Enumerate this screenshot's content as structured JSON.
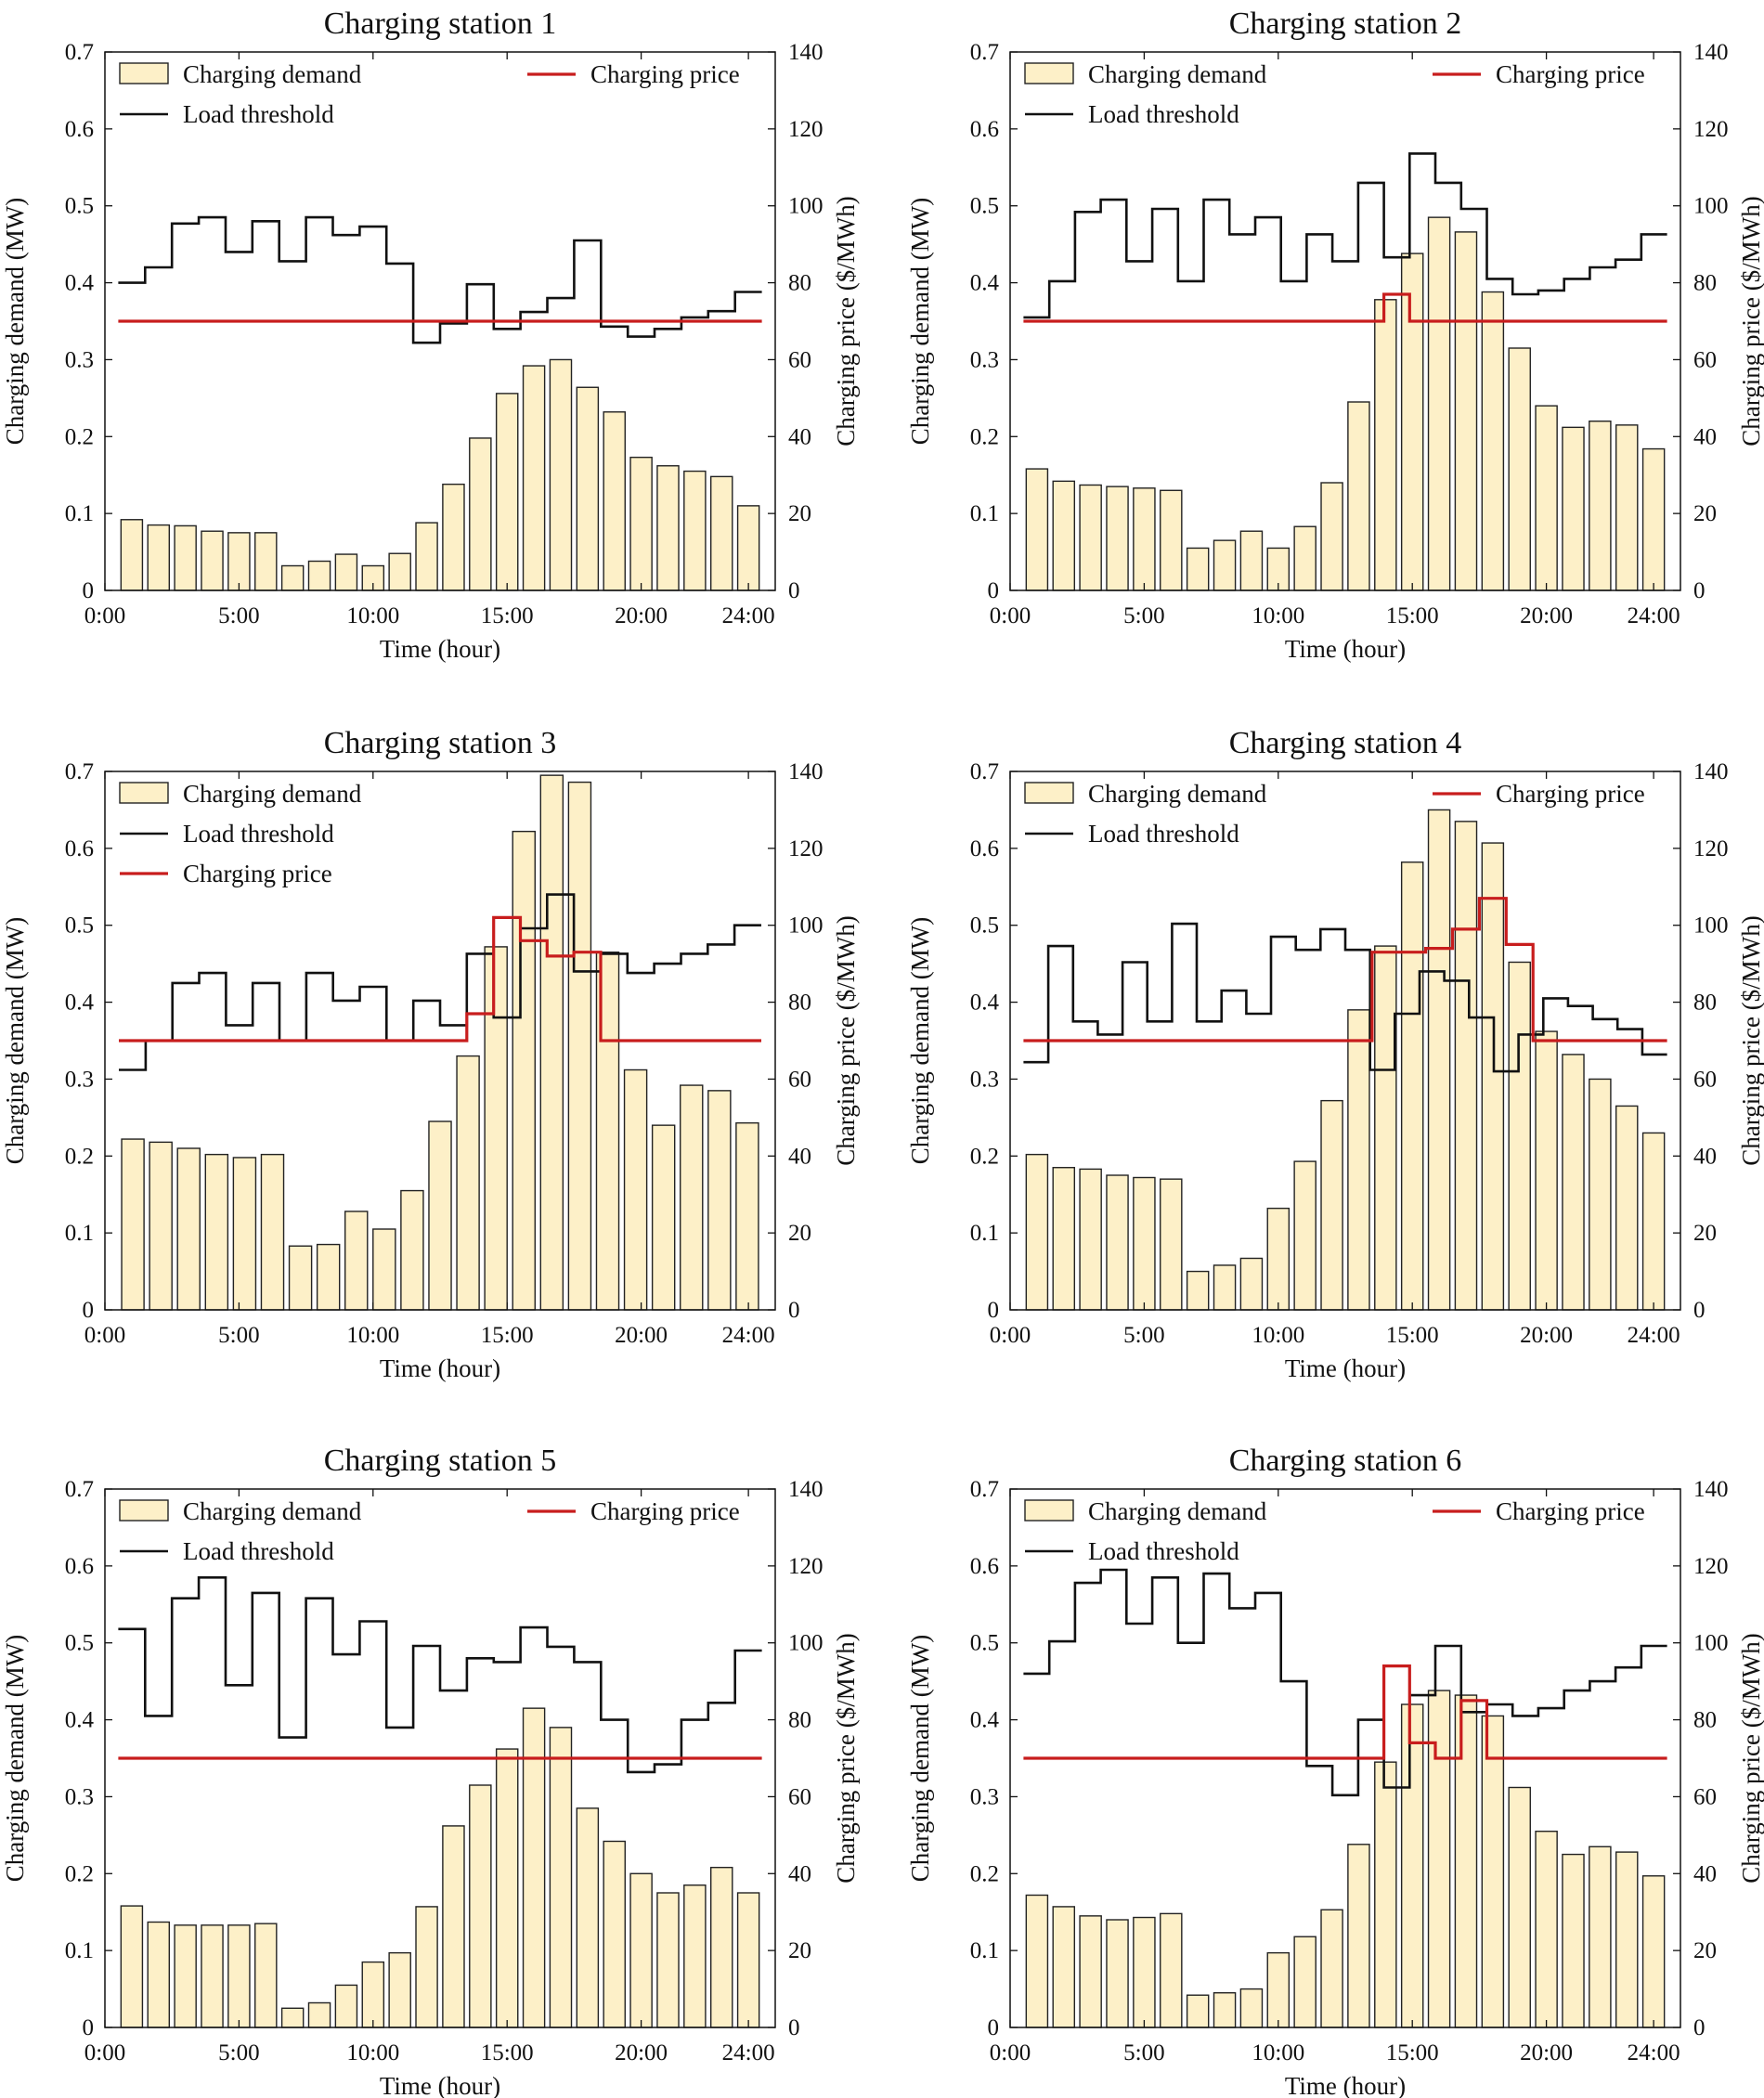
{
  "chart_data": [
    {
      "type": "bar",
      "title": "Charging station 1",
      "xlabel": "Time (hour)",
      "ylabel": "Charging demand (MW)",
      "y2label": "Charging price ($/MWh)",
      "xlim": [
        0,
        25
      ],
      "ylim": [
        0,
        0.7
      ],
      "y2lim": [
        0,
        140
      ],
      "xticks": [
        0,
        5,
        10,
        15,
        20,
        24
      ],
      "xtick_labels": [
        "0:00",
        "5:00",
        "10:00",
        "15:00",
        "20:00",
        "24:00"
      ],
      "yticks": [
        0,
        0.1,
        0.2,
        0.3,
        0.4,
        0.5,
        0.6,
        0.7
      ],
      "ytick_labels": [
        "0",
        "0.1",
        "0.2",
        "0.3",
        "0.4",
        "0.5",
        "0.6",
        "0.7"
      ],
      "y2ticks": [
        0,
        20,
        40,
        60,
        80,
        100,
        120,
        140
      ],
      "y2tick_labels": [
        "0",
        "20",
        "40",
        "60",
        "80",
        "100",
        "120",
        "140"
      ],
      "legend": [
        {
          "label": "Charging demand",
          "style": "bar",
          "col": 0,
          "row": 0
        },
        {
          "label": "Load threshold",
          "style": "line",
          "color": "#111111",
          "col": 0,
          "row": 1
        },
        {
          "label": "Charging price",
          "style": "line",
          "color": "#c81d1d",
          "col": 1,
          "row": 0
        }
      ],
      "series": [
        {
          "name": "Charging demand",
          "kind": "bar",
          "axis": "left",
          "values": [
            0.092,
            0.085,
            0.084,
            0.077,
            0.075,
            0.075,
            0.032,
            0.038,
            0.047,
            0.032,
            0.048,
            0.088,
            0.138,
            0.198,
            0.256,
            0.292,
            0.3,
            0.264,
            0.232,
            0.173,
            0.162,
            0.155,
            0.148,
            0.11
          ]
        },
        {
          "name": "Load threshold",
          "kind": "step",
          "axis": "left",
          "values": [
            0.4,
            0.42,
            0.477,
            0.485,
            0.44,
            0.48,
            0.428,
            0.485,
            0.462,
            0.473,
            0.425,
            0.322,
            0.347,
            0.398,
            0.34,
            0.362,
            0.38,
            0.455,
            0.343,
            0.33,
            0.34,
            0.355,
            0.363,
            0.388
          ]
        },
        {
          "name": "Charging price",
          "kind": "step",
          "axis": "right",
          "values": [
            70,
            70,
            70,
            70,
            70,
            70,
            70,
            70,
            70,
            70,
            70,
            70,
            70,
            70,
            70,
            70,
            70,
            70,
            70,
            70,
            70,
            70,
            70,
            70
          ]
        }
      ]
    },
    {
      "type": "bar",
      "title": "Charging station 2",
      "xlabel": "Time (hour)",
      "ylabel": "Charging demand (MW)",
      "y2label": "Charging price ($/MWh)",
      "xlim": [
        0,
        25
      ],
      "ylim": [
        0,
        0.7
      ],
      "y2lim": [
        0,
        140
      ],
      "xticks": [
        0,
        5,
        10,
        15,
        20,
        24
      ],
      "xtick_labels": [
        "0:00",
        "5:00",
        "10:00",
        "15:00",
        "20:00",
        "24:00"
      ],
      "yticks": [
        0,
        0.1,
        0.2,
        0.3,
        0.4,
        0.5,
        0.6,
        0.7
      ],
      "ytick_labels": [
        "0",
        "0.1",
        "0.2",
        "0.3",
        "0.4",
        "0.5",
        "0.6",
        "0.7"
      ],
      "y2ticks": [
        0,
        20,
        40,
        60,
        80,
        100,
        120,
        140
      ],
      "y2tick_labels": [
        "0",
        "20",
        "40",
        "60",
        "80",
        "100",
        "120",
        "140"
      ],
      "legend": [
        {
          "label": "Charging demand",
          "style": "bar",
          "col": 0,
          "row": 0
        },
        {
          "label": "Load threshold",
          "style": "line",
          "color": "#111111",
          "col": 0,
          "row": 1
        },
        {
          "label": "Charging price",
          "style": "line",
          "color": "#c81d1d",
          "col": 1,
          "row": 0
        }
      ],
      "series": [
        {
          "name": "Charging demand",
          "kind": "bar",
          "axis": "left",
          "values": [
            0.158,
            0.142,
            0.137,
            0.135,
            0.133,
            0.13,
            0.055,
            0.065,
            0.077,
            0.055,
            0.083,
            0.14,
            0.245,
            0.378,
            0.438,
            0.485,
            0.466,
            0.388,
            0.315,
            0.24,
            0.212,
            0.22,
            0.215,
            0.184
          ]
        },
        {
          "name": "Load threshold",
          "kind": "step",
          "axis": "left",
          "values": [
            0.355,
            0.402,
            0.492,
            0.508,
            0.428,
            0.496,
            0.402,
            0.508,
            0.463,
            0.485,
            0.402,
            0.463,
            0.428,
            0.53,
            0.433,
            0.568,
            0.53,
            0.496,
            0.405,
            0.385,
            0.39,
            0.405,
            0.42,
            0.43,
            0.463
          ]
        },
        {
          "name": "Charging price",
          "kind": "step",
          "axis": "right",
          "values": [
            70,
            70,
            70,
            70,
            70,
            70,
            70,
            70,
            70,
            70,
            70,
            70,
            70,
            70,
            77,
            70,
            70,
            70,
            70,
            70,
            70,
            70,
            70,
            70,
            70
          ]
        }
      ]
    },
    {
      "type": "bar",
      "title": "Charging station 3",
      "xlabel": "Time (hour)",
      "ylabel": "Charging demand (MW)",
      "y2label": "Charging price ($/MWh)",
      "xlim": [
        0,
        25
      ],
      "ylim": [
        0,
        0.7
      ],
      "y2lim": [
        0,
        140
      ],
      "xticks": [
        0,
        5,
        10,
        15,
        20,
        24
      ],
      "xtick_labels": [
        "0:00",
        "5:00",
        "10:00",
        "15:00",
        "20:00",
        "24:00"
      ],
      "yticks": [
        0,
        0.1,
        0.2,
        0.3,
        0.4,
        0.5,
        0.6,
        0.7
      ],
      "ytick_labels": [
        "0",
        "0.1",
        "0.2",
        "0.3",
        "0.4",
        "0.5",
        "0.6",
        "0.7"
      ],
      "y2ticks": [
        0,
        20,
        40,
        60,
        80,
        100,
        120,
        140
      ],
      "y2tick_labels": [
        "0",
        "20",
        "40",
        "60",
        "80",
        "100",
        "120",
        "140"
      ],
      "legend": [
        {
          "label": "Charging demand",
          "style": "bar",
          "col": 0,
          "row": 0
        },
        {
          "label": "Load threshold",
          "style": "line",
          "color": "#111111",
          "col": 0,
          "row": 1
        },
        {
          "label": "Charging price",
          "style": "line",
          "color": "#c81d1d",
          "col": 0,
          "row": 2
        }
      ],
      "series": [
        {
          "name": "Charging demand",
          "kind": "bar",
          "axis": "left",
          "values": [
            0.222,
            0.218,
            0.21,
            0.202,
            0.198,
            0.202,
            0.083,
            0.085,
            0.128,
            0.105,
            0.155,
            0.245,
            0.33,
            0.472,
            0.622,
            0.695,
            0.686,
            0.465,
            0.312,
            0.24,
            0.292,
            0.285,
            0.243
          ]
        },
        {
          "name": "Load threshold",
          "kind": "step",
          "axis": "left",
          "values": [
            0.312,
            0.35,
            0.425,
            0.438,
            0.37,
            0.425,
            0.35,
            0.438,
            0.402,
            0.42,
            0.35,
            0.402,
            0.37,
            0.463,
            0.38,
            0.496,
            0.54,
            0.44,
            0.463,
            0.438,
            0.45,
            0.463,
            0.475,
            0.5
          ]
        },
        {
          "name": "Charging price",
          "kind": "step",
          "axis": "right",
          "values": [
            70,
            70,
            70,
            70,
            70,
            70,
            70,
            70,
            70,
            70,
            70,
            70,
            70,
            77,
            102,
            96,
            92,
            93,
            70,
            70,
            70,
            70,
            70,
            70
          ]
        }
      ]
    },
    {
      "type": "bar",
      "title": "Charging station 4",
      "xlabel": "Time (hour)",
      "ylabel": "Charging demand (MW)",
      "y2label": "Charging price ($/MWh)",
      "xlim": [
        0,
        25
      ],
      "ylim": [
        0,
        0.7
      ],
      "y2lim": [
        0,
        140
      ],
      "xticks": [
        0,
        5,
        10,
        15,
        20,
        24
      ],
      "xtick_labels": [
        "0:00",
        "5:00",
        "10:00",
        "15:00",
        "20:00",
        "24:00"
      ],
      "yticks": [
        0,
        0.1,
        0.2,
        0.3,
        0.4,
        0.5,
        0.6,
        0.7
      ],
      "ytick_labels": [
        "0",
        "0.1",
        "0.2",
        "0.3",
        "0.4",
        "0.5",
        "0.6",
        "0.7"
      ],
      "y2ticks": [
        0,
        20,
        40,
        60,
        80,
        100,
        120,
        140
      ],
      "y2tick_labels": [
        "0",
        "20",
        "40",
        "60",
        "80",
        "100",
        "120",
        "140"
      ],
      "legend": [
        {
          "label": "Charging demand",
          "style": "bar",
          "col": 0,
          "row": 0
        },
        {
          "label": "Load threshold",
          "style": "line",
          "color": "#111111",
          "col": 0,
          "row": 1
        },
        {
          "label": "Charging price",
          "style": "line",
          "color": "#c81d1d",
          "col": 1,
          "row": 0
        }
      ],
      "series": [
        {
          "name": "Charging demand",
          "kind": "bar",
          "axis": "left",
          "values": [
            0.202,
            0.185,
            0.183,
            0.175,
            0.172,
            0.17,
            0.05,
            0.058,
            0.067,
            0.132,
            0.193,
            0.272,
            0.39,
            0.473,
            0.582,
            0.65,
            0.635,
            0.607,
            0.452,
            0.362,
            0.332,
            0.3,
            0.265,
            0.23
          ]
        },
        {
          "name": "Load threshold",
          "kind": "step",
          "axis": "left",
          "values": [
            0.322,
            0.473,
            0.375,
            0.358,
            0.452,
            0.375,
            0.502,
            0.375,
            0.415,
            0.385,
            0.485,
            0.468,
            0.495,
            0.468,
            0.312,
            0.385,
            0.44,
            0.428,
            0.38,
            0.31,
            0.358,
            0.405,
            0.395,
            0.378,
            0.365,
            0.332
          ]
        },
        {
          "name": "Charging price",
          "kind": "step",
          "axis": "right",
          "values": [
            70,
            70,
            70,
            70,
            70,
            70,
            70,
            70,
            70,
            70,
            70,
            70,
            70,
            93,
            93,
            94,
            99,
            107,
            95,
            70,
            70,
            70,
            70,
            70
          ]
        }
      ]
    },
    {
      "type": "bar",
      "title": "Charging station 5",
      "xlabel": "Time (hour)",
      "ylabel": "Charging demand (MW)",
      "y2label": "Charging price ($/MWh)",
      "xlim": [
        0,
        25
      ],
      "ylim": [
        0,
        0.7
      ],
      "y2lim": [
        0,
        140
      ],
      "xticks": [
        0,
        5,
        10,
        15,
        20,
        24
      ],
      "xtick_labels": [
        "0:00",
        "5:00",
        "10:00",
        "15:00",
        "20:00",
        "24:00"
      ],
      "yticks": [
        0,
        0.1,
        0.2,
        0.3,
        0.4,
        0.5,
        0.6,
        0.7
      ],
      "ytick_labels": [
        "0",
        "0.1",
        "0.2",
        "0.3",
        "0.4",
        "0.5",
        "0.6",
        "0.7"
      ],
      "y2ticks": [
        0,
        20,
        40,
        60,
        80,
        100,
        120,
        140
      ],
      "y2tick_labels": [
        "0",
        "20",
        "40",
        "60",
        "80",
        "100",
        "120",
        "140"
      ],
      "legend": [
        {
          "label": "Charging demand",
          "style": "bar",
          "col": 0,
          "row": 0
        },
        {
          "label": "Load threshold",
          "style": "line",
          "color": "#111111",
          "col": 0,
          "row": 1
        },
        {
          "label": "Charging price",
          "style": "line",
          "color": "#c81d1d",
          "col": 1,
          "row": 0
        }
      ],
      "series": [
        {
          "name": "Charging demand",
          "kind": "bar",
          "axis": "left",
          "values": [
            0.158,
            0.137,
            0.133,
            0.133,
            0.133,
            0.135,
            0.025,
            0.032,
            0.055,
            0.085,
            0.097,
            0.157,
            0.262,
            0.315,
            0.362,
            0.415,
            0.39,
            0.285,
            0.242,
            0.2,
            0.175,
            0.185,
            0.208,
            0.175
          ]
        },
        {
          "name": "Load threshold",
          "kind": "step",
          "axis": "left",
          "values": [
            0.518,
            0.405,
            0.558,
            0.585,
            0.445,
            0.565,
            0.377,
            0.558,
            0.485,
            0.528,
            0.39,
            0.496,
            0.438,
            0.48,
            0.475,
            0.52,
            0.495,
            0.475,
            0.4,
            0.332,
            0.342,
            0.4,
            0.422,
            0.49
          ]
        },
        {
          "name": "Charging price",
          "kind": "step",
          "axis": "right",
          "values": [
            70,
            70,
            70,
            70,
            70,
            70,
            70,
            70,
            70,
            70,
            70,
            70,
            70,
            70,
            70,
            70,
            70,
            70,
            70,
            70,
            70,
            70,
            70,
            70
          ]
        }
      ]
    },
    {
      "type": "bar",
      "title": "Charging station 6",
      "xlabel": "Time (hour)",
      "ylabel": "Charging demand (MW)",
      "y2label": "Charging price ($/MWh)",
      "xlim": [
        0,
        25
      ],
      "ylim": [
        0,
        0.7
      ],
      "y2lim": [
        0,
        140
      ],
      "xticks": [
        0,
        5,
        10,
        15,
        20,
        24
      ],
      "xtick_labels": [
        "0:00",
        "5:00",
        "10:00",
        "15:00",
        "20:00",
        "24:00"
      ],
      "yticks": [
        0,
        0.1,
        0.2,
        0.3,
        0.4,
        0.5,
        0.6,
        0.7
      ],
      "ytick_labels": [
        "0",
        "0.1",
        "0.2",
        "0.3",
        "0.4",
        "0.5",
        "0.6",
        "0.7"
      ],
      "y2ticks": [
        0,
        20,
        40,
        60,
        80,
        100,
        120,
        140
      ],
      "y2tick_labels": [
        "0",
        "20",
        "40",
        "60",
        "80",
        "100",
        "120",
        "140"
      ],
      "legend": [
        {
          "label": "Charging demand",
          "style": "bar",
          "col": 0,
          "row": 0
        },
        {
          "label": "Load threshold",
          "style": "line",
          "color": "#111111",
          "col": 0,
          "row": 1
        },
        {
          "label": "Charging price",
          "style": "line",
          "color": "#c81d1d",
          "col": 1,
          "row": 0
        }
      ],
      "series": [
        {
          "name": "Charging demand",
          "kind": "bar",
          "axis": "left",
          "values": [
            0.172,
            0.157,
            0.145,
            0.14,
            0.143,
            0.148,
            0.042,
            0.045,
            0.05,
            0.097,
            0.118,
            0.153,
            0.238,
            0.345,
            0.42,
            0.438,
            0.432,
            0.405,
            0.312,
            0.255,
            0.225,
            0.235,
            0.228,
            0.197
          ]
        },
        {
          "name": "Load threshold",
          "kind": "step",
          "axis": "left",
          "values": [
            0.46,
            0.502,
            0.578,
            0.595,
            0.525,
            0.585,
            0.5,
            0.59,
            0.545,
            0.565,
            0.45,
            0.34,
            0.302,
            0.4,
            0.312,
            0.432,
            0.496,
            0.41,
            0.42,
            0.405,
            0.415,
            0.438,
            0.45,
            0.468,
            0.496
          ]
        },
        {
          "name": "Charging price",
          "kind": "step",
          "axis": "right",
          "values": [
            70,
            70,
            70,
            70,
            70,
            70,
            70,
            70,
            70,
            70,
            70,
            70,
            70,
            70,
            94,
            74,
            70,
            85,
            70,
            70,
            70,
            70,
            70,
            70,
            70
          ]
        }
      ]
    }
  ]
}
